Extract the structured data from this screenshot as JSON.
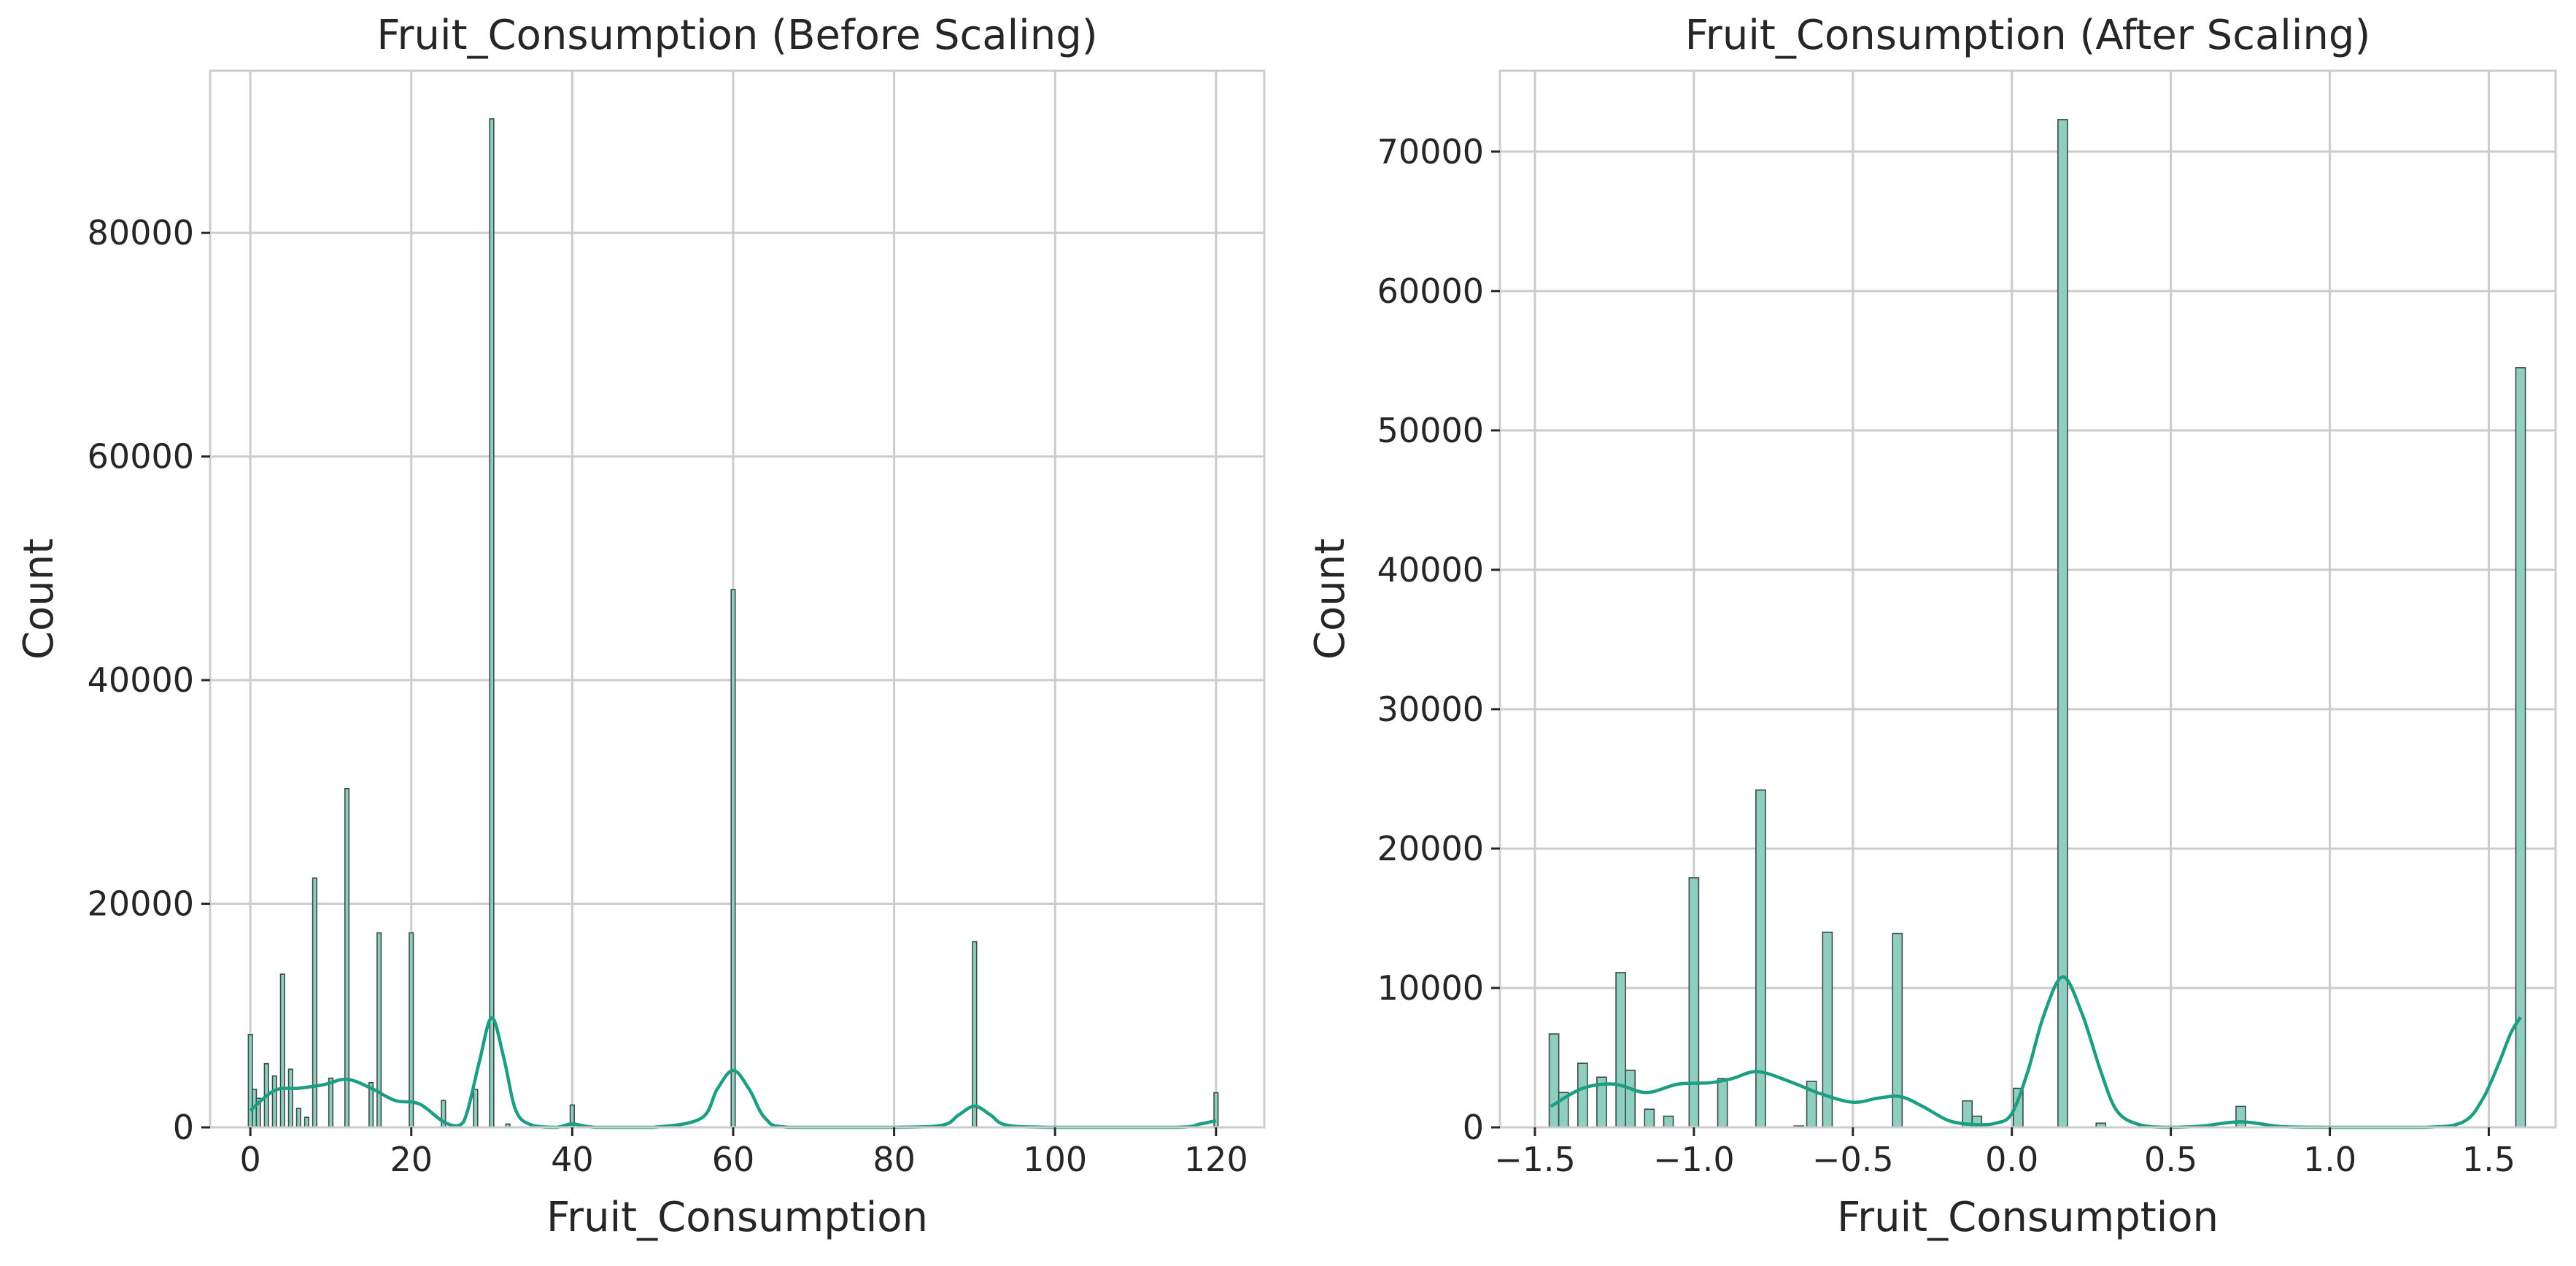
{
  "colors": {
    "bar_fill": "#8fcfc0",
    "bar_edge": "#3a4a48",
    "kde": "#1b9e82"
  },
  "chart_data": [
    {
      "type": "histogram",
      "title": "Fruit_Consumption (Before Scaling)",
      "xlabel": "Fruit_Consumption",
      "ylabel": "Count",
      "xlim": [
        -5,
        126
      ],
      "ylim": [
        0,
        94500
      ],
      "grid": true,
      "xticks": [
        0,
        20,
        40,
        60,
        80,
        100,
        120
      ],
      "yticks": [
        0,
        20000,
        40000,
        60000,
        80000
      ],
      "bin_width": 0.5,
      "bars": [
        {
          "x": 0,
          "count": 8300
        },
        {
          "x": 0.5,
          "count": 3400
        },
        {
          "x": 1,
          "count": 2600
        },
        {
          "x": 2,
          "count": 5700
        },
        {
          "x": 3,
          "count": 4600
        },
        {
          "x": 4,
          "count": 13700
        },
        {
          "x": 5,
          "count": 5200
        },
        {
          "x": 6,
          "count": 1700
        },
        {
          "x": 7,
          "count": 900
        },
        {
          "x": 8,
          "count": 22300
        },
        {
          "x": 10,
          "count": 4400
        },
        {
          "x": 12,
          "count": 30300
        },
        {
          "x": 15,
          "count": 4000
        },
        {
          "x": 16,
          "count": 17400
        },
        {
          "x": 20,
          "count": 17400
        },
        {
          "x": 24,
          "count": 2400
        },
        {
          "x": 28,
          "count": 3400
        },
        {
          "x": 30,
          "count": 90200
        },
        {
          "x": 32,
          "count": 300
        },
        {
          "x": 40,
          "count": 2000
        },
        {
          "x": 60,
          "count": 48100
        },
        {
          "x": 90,
          "count": 16600
        },
        {
          "x": 120,
          "count": 3100
        }
      ],
      "kde": [
        [
          0,
          1500
        ],
        [
          3,
          3300
        ],
        [
          6,
          3500
        ],
        [
          9,
          3800
        ],
        [
          12,
          4300
        ],
        [
          15,
          3500
        ],
        [
          18,
          2400
        ],
        [
          21,
          2100
        ],
        [
          24,
          500
        ],
        [
          26,
          200
        ],
        [
          27,
          1500
        ],
        [
          28.5,
          6000
        ],
        [
          30,
          9800
        ],
        [
          31.5,
          6200
        ],
        [
          33,
          1500
        ],
        [
          35,
          200
        ],
        [
          38,
          0
        ],
        [
          40,
          300
        ],
        [
          43,
          0
        ],
        [
          50,
          0
        ],
        [
          56,
          800
        ],
        [
          58,
          3400
        ],
        [
          60,
          5100
        ],
        [
          62,
          3400
        ],
        [
          64,
          800
        ],
        [
          67,
          0
        ],
        [
          80,
          0
        ],
        [
          86,
          200
        ],
        [
          88,
          1100
        ],
        [
          90,
          1900
        ],
        [
          92,
          1100
        ],
        [
          94,
          200
        ],
        [
          100,
          0
        ],
        [
          115,
          0
        ],
        [
          118,
          300
        ],
        [
          120,
          600
        ]
      ]
    },
    {
      "type": "histogram",
      "title": "Fruit_Consumption (After Scaling)",
      "xlabel": "Fruit_Consumption",
      "ylabel": "Count",
      "xlim": [
        -1.61,
        1.71
      ],
      "ylim": [
        0,
        75800
      ],
      "grid": true,
      "xticks": [
        -1.5,
        -1.0,
        -0.5,
        0.0,
        0.5,
        1.0,
        1.5
      ],
      "xtick_labels": [
        "−1.5",
        "−1.0",
        "−0.5",
        "0.0",
        "0.5",
        "1.0",
        "1.5"
      ],
      "yticks": [
        0,
        10000,
        20000,
        30000,
        40000,
        50000,
        60000,
        70000
      ],
      "bin_width": 0.03,
      "bars": [
        {
          "x": -1.44,
          "count": 6700
        },
        {
          "x": -1.41,
          "count": 2500
        },
        {
          "x": -1.35,
          "count": 4600
        },
        {
          "x": -1.29,
          "count": 3600
        },
        {
          "x": -1.23,
          "count": 11100
        },
        {
          "x": -1.2,
          "count": 4100
        },
        {
          "x": -1.14,
          "count": 1300
        },
        {
          "x": -1.08,
          "count": 800
        },
        {
          "x": -1.0,
          "count": 17900
        },
        {
          "x": -0.91,
          "count": 3500
        },
        {
          "x": -0.79,
          "count": 24200
        },
        {
          "x": -0.67,
          "count": 100
        },
        {
          "x": -0.63,
          "count": 3300
        },
        {
          "x": -0.58,
          "count": 14000
        },
        {
          "x": -0.36,
          "count": 13900
        },
        {
          "x": -0.14,
          "count": 1900
        },
        {
          "x": -0.11,
          "count": 800
        },
        {
          "x": 0.02,
          "count": 2800
        },
        {
          "x": 0.16,
          "count": 72300
        },
        {
          "x": 0.28,
          "count": 300
        },
        {
          "x": 0.72,
          "count": 1500
        },
        {
          "x": 1.6,
          "count": 54500
        }
      ],
      "kde": [
        [
          -1.45,
          1500
        ],
        [
          -1.35,
          2800
        ],
        [
          -1.25,
          3100
        ],
        [
          -1.15,
          2500
        ],
        [
          -1.05,
          3100
        ],
        [
          -0.95,
          3200
        ],
        [
          -0.88,
          3500
        ],
        [
          -0.8,
          4000
        ],
        [
          -0.7,
          3300
        ],
        [
          -0.6,
          2400
        ],
        [
          -0.5,
          1800
        ],
        [
          -0.42,
          2100
        ],
        [
          -0.35,
          2200
        ],
        [
          -0.28,
          1500
        ],
        [
          -0.2,
          500
        ],
        [
          -0.12,
          200
        ],
        [
          -0.05,
          300
        ],
        [
          0.0,
          1000
        ],
        [
          0.05,
          4000
        ],
        [
          0.1,
          8000
        ],
        [
          0.16,
          10800
        ],
        [
          0.22,
          8200
        ],
        [
          0.28,
          4000
        ],
        [
          0.33,
          1200
        ],
        [
          0.4,
          200
        ],
        [
          0.5,
          0
        ],
        [
          0.6,
          100
        ],
        [
          0.72,
          400
        ],
        [
          0.85,
          50
        ],
        [
          1.0,
          0
        ],
        [
          1.3,
          0
        ],
        [
          1.42,
          400
        ],
        [
          1.48,
          2000
        ],
        [
          1.53,
          4500
        ],
        [
          1.57,
          6800
        ],
        [
          1.6,
          7900
        ]
      ]
    }
  ]
}
